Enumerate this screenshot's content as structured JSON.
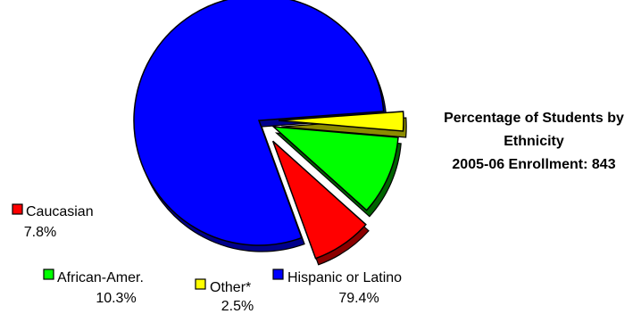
{
  "chart_data": {
    "type": "pie",
    "title_lines": [
      "Percentage of Students by",
      "Ethnicity",
      "2005-06 Enrollment: 843"
    ],
    "slices": [
      {
        "name": "Hispanic or Latino",
        "value": 79.4,
        "value_label": "79.4%",
        "color": "#0000FF",
        "shadow": "#00008B"
      },
      {
        "name": "Other*",
        "value": 2.5,
        "value_label": "2.5%",
        "color": "#FFFF00",
        "shadow": "#8B8B00"
      },
      {
        "name": "African-Amer.",
        "value": 10.3,
        "value_label": "10.3%",
        "color": "#00FF00",
        "shadow": "#006400"
      },
      {
        "name": "Caucasian",
        "value": 7.8,
        "value_label": "7.8%",
        "color": "#FF0000",
        "shadow": "#8B0000"
      }
    ],
    "legend_style": "inline labels with colored squares",
    "exploded": [
      "Other*",
      "African-Amer.",
      "Caucasian"
    ]
  }
}
